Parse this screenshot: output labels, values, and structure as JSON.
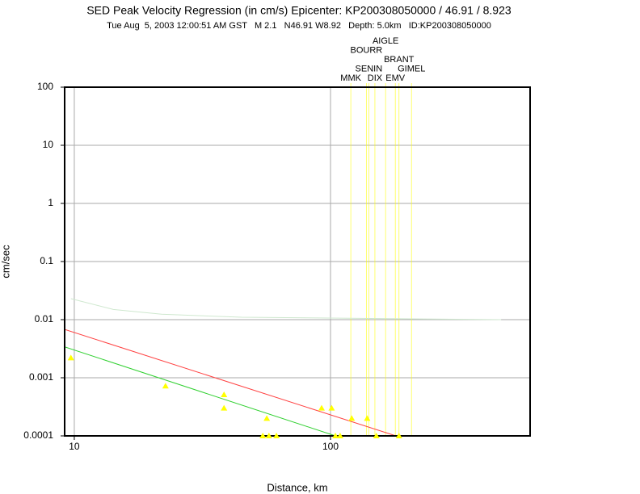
{
  "chart_data": {
    "type": "scatter",
    "title": "SED Peak Velocity Regression (in cm/s) Epicenter: KP200308050000 / 46.91 / 8.923",
    "subtitle": "Tue Aug  5, 2003 12:00:51 AM GST   M 2.1   N46.91 W8.92   Depth: 5.0km   ID:KP200308050000",
    "x_label": "Distance, km",
    "y_label": "cm/sec",
    "xlim": [
      9.17,
      601
    ],
    "ylim": [
      0.0001,
      100
    ],
    "xticks": [
      10,
      100
    ],
    "yticks": [
      0.0001,
      0.001,
      0.01,
      0.1,
      1,
      10,
      100
    ],
    "log_x": true,
    "log_y": true,
    "grid": true,
    "series": [
      {
        "type": "scatter",
        "color": "#ffff00",
        "x": [
          9.7,
          22.7,
          38.4,
          38.4,
          56.4,
          92.3,
          101,
          121,
          139,
          54.4,
          57.5,
          61.5,
          104.5,
          109,
          151,
          185
        ],
        "values": [
          0.0022,
          0.00072,
          0.00051,
          0.0003,
          0.0002,
          0.0003,
          0.0003,
          0.0002,
          0.0002,
          0.0001,
          0.0001,
          0.0001,
          0.0001,
          0.0001,
          0.0001,
          0.0001
        ]
      },
      {
        "type": "line",
        "color": "#ff4040",
        "x": [
          9.17,
          180
        ],
        "values": [
          0.0068,
          0.0001
        ]
      },
      {
        "type": "line",
        "color": "#30d030",
        "x": [
          9.17,
          104.5
        ],
        "values": [
          0.0034,
          0.0001
        ]
      },
      {
        "type": "line",
        "color": "#cfe8cf",
        "x": [
          9.7,
          14.2,
          21.9,
          45,
          463
        ],
        "values": [
          0.023,
          0.015,
          0.0124,
          0.011,
          0.01
        ]
      }
    ],
    "stations": {
      "color": "#ffff00",
      "labels": [
        "MMK",
        "DIX",
        "EMV",
        "SENIN",
        "BRANT",
        "BOURR",
        "GIMEL",
        "AIGLE"
      ],
      "x": [
        120,
        149,
        179,
        141,
        185,
        138,
        207,
        164
      ]
    }
  }
}
